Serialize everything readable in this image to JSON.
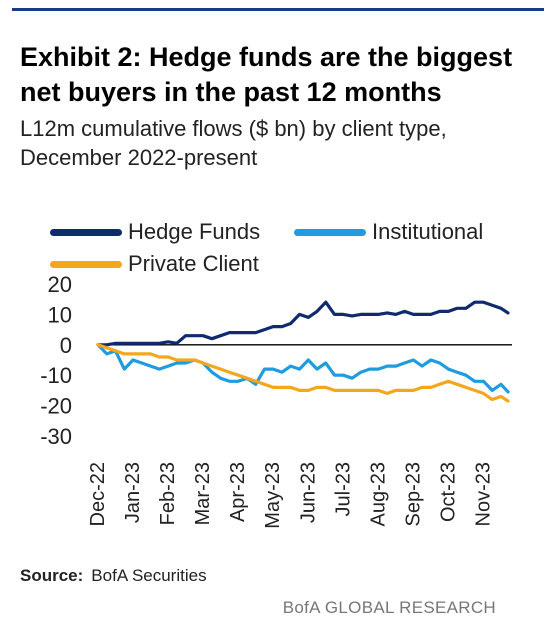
{
  "header": {
    "title": "Exhibit 2: Hedge funds are the biggest net buyers in the past 12 months",
    "subtitle": "L12m cumulative flows ($ bn) by client type, December 2022-present"
  },
  "legend": {
    "items": [
      {
        "label": "Hedge Funds",
        "color": "#0f2a6e"
      },
      {
        "label": "Institutional",
        "color": "#1f9be0"
      },
      {
        "label": "Private Client",
        "color": "#f4a71d"
      }
    ]
  },
  "chart_data": {
    "type": "line",
    "title": "Exhibit 2: Hedge funds are the biggest net buyers in the past 12 months",
    "subtitle": "L12m cumulative flows ($ bn) by client type, December 2022-present",
    "xlabel": "",
    "ylabel": "",
    "ylim": [
      -30,
      20
    ],
    "yticks": [
      20,
      10,
      0,
      -10,
      -20,
      -30
    ],
    "x_ticks": [
      "Dec-22",
      "Jan-23",
      "Feb-23",
      "Mar-23",
      "Apr-23",
      "May-23",
      "Jun-23",
      "Jul-23",
      "Aug-23",
      "Sep-23",
      "Oct-23",
      "Nov-23"
    ],
    "x_range": [
      0,
      11.7
    ],
    "grid": false,
    "legend_position": "top",
    "zero_line": true,
    "series": [
      {
        "name": "Hedge Funds",
        "color": "#0f2a6e",
        "x": [
          0,
          0.25,
          0.5,
          0.75,
          1.0,
          1.25,
          1.5,
          1.75,
          2.0,
          2.25,
          2.5,
          2.75,
          3.0,
          3.25,
          3.5,
          3.75,
          4.0,
          4.25,
          4.5,
          4.75,
          5.0,
          5.25,
          5.5,
          5.75,
          6.0,
          6.25,
          6.5,
          6.75,
          7.0,
          7.25,
          7.5,
          7.75,
          8.0,
          8.25,
          8.5,
          8.75,
          9.0,
          9.25,
          9.5,
          9.75,
          10.0,
          10.25,
          10.5,
          10.75,
          11.0,
          11.25,
          11.5,
          11.7
        ],
        "values": [
          0,
          0,
          0.5,
          0.5,
          0.5,
          0.5,
          0.5,
          0.5,
          1,
          0.5,
          3,
          3,
          3,
          2,
          3,
          4,
          4,
          4,
          4,
          5,
          6,
          6,
          7,
          10,
          9,
          11,
          14,
          10,
          10,
          9.5,
          10,
          10,
          10,
          10.5,
          10,
          11,
          10,
          10,
          10,
          11,
          11,
          12,
          12,
          14,
          14,
          13,
          12,
          10.5
        ]
      },
      {
        "name": "Institutional",
        "color": "#1f9be0",
        "x": [
          0,
          0.25,
          0.5,
          0.75,
          1.0,
          1.25,
          1.5,
          1.75,
          2.0,
          2.25,
          2.5,
          2.75,
          3.0,
          3.25,
          3.5,
          3.75,
          4.0,
          4.25,
          4.5,
          4.75,
          5.0,
          5.25,
          5.5,
          5.75,
          6.0,
          6.25,
          6.5,
          6.75,
          7.0,
          7.25,
          7.5,
          7.75,
          8.0,
          8.25,
          8.5,
          8.75,
          9.0,
          9.25,
          9.5,
          9.75,
          10.0,
          10.25,
          10.5,
          10.75,
          11.0,
          11.25,
          11.5,
          11.7
        ],
        "values": [
          0,
          -3,
          -2,
          -8,
          -5,
          -6,
          -7,
          -8,
          -7,
          -6,
          -6,
          -5,
          -6,
          -9,
          -11,
          -12,
          -12,
          -11,
          -13,
          -8,
          -8,
          -9,
          -7,
          -8,
          -5,
          -8,
          -6,
          -10,
          -10,
          -11,
          -9,
          -8,
          -8,
          -7,
          -7,
          -6,
          -5,
          -7,
          -5,
          -6,
          -8,
          -9,
          -10,
          -12,
          -12,
          -15,
          -13,
          -15.5
        ]
      },
      {
        "name": "Private Client",
        "color": "#f4a71d",
        "x": [
          0,
          0.25,
          0.5,
          0.75,
          1.0,
          1.25,
          1.5,
          1.75,
          2.0,
          2.25,
          2.5,
          2.75,
          3.0,
          3.25,
          3.5,
          3.75,
          4.0,
          4.25,
          4.5,
          4.75,
          5.0,
          5.25,
          5.5,
          5.75,
          6.0,
          6.25,
          6.5,
          6.75,
          7.0,
          7.25,
          7.5,
          7.75,
          8.0,
          8.25,
          8.5,
          8.75,
          9.0,
          9.25,
          9.5,
          9.75,
          10.0,
          10.25,
          10.5,
          10.75,
          11.0,
          11.25,
          11.5,
          11.7
        ],
        "values": [
          0,
          -1,
          -2,
          -3,
          -3,
          -3,
          -3,
          -4,
          -4,
          -5,
          -5,
          -5,
          -6,
          -7,
          -8,
          -9,
          -10,
          -11,
          -12,
          -13,
          -14,
          -14,
          -14,
          -15,
          -15,
          -14,
          -14,
          -15,
          -15,
          -15,
          -15,
          -15,
          -15,
          -16,
          -15,
          -15,
          -15,
          -14,
          -14,
          -13,
          -12,
          -13,
          -14,
          -15,
          -16,
          -18,
          -17,
          -18.5
        ]
      }
    ]
  },
  "footer": {
    "source_label": "Source:",
    "source_text": "BofA Securities",
    "brand": "BofA GLOBAL RESEARCH"
  }
}
